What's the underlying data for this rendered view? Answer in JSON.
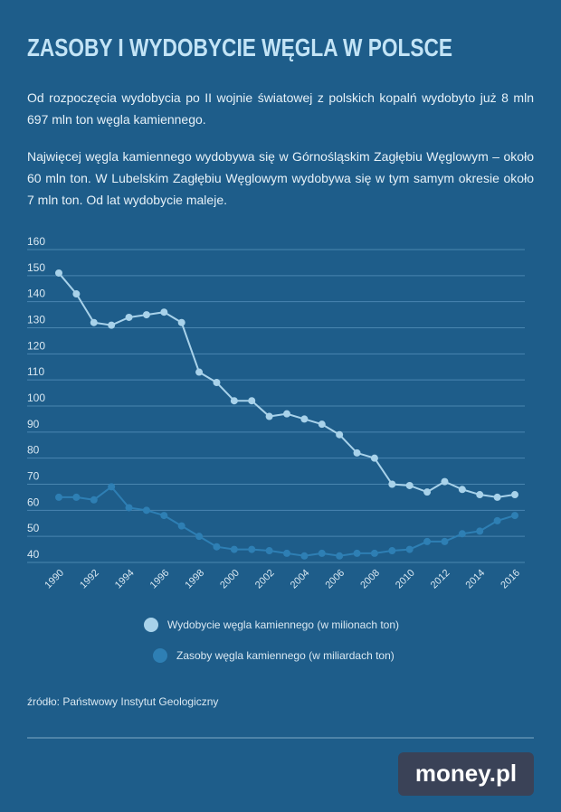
{
  "header": {
    "title": "ZASOBY I WYDOBYCIE WĘGLA W POLSCE"
  },
  "paragraphs": [
    "Od rozpoczęcia wydobycia po II wojnie światowej z polskich kopalń wydobyto już 8 mln 697 mln ton węgla kamiennego.",
    "Najwięcej węgla kamiennego wydobywa się w Górnośląskim Zagłębiu Węglowym – około 60 mln ton. W Lubelskim Zagłębiu Węglowym wydobywa się w tym samym okresie około 7 mln ton. Od lat wydobycie maleje."
  ],
  "chart_data": {
    "type": "line",
    "x": [
      1990,
      1991,
      1992,
      1993,
      1994,
      1995,
      1996,
      1997,
      1998,
      1999,
      2000,
      2001,
      2002,
      2003,
      2004,
      2005,
      2006,
      2007,
      2008,
      2009,
      2010,
      2011,
      2012,
      2013,
      2014,
      2015,
      2016
    ],
    "series": [
      {
        "name": "Wydobycie węgla kamiennego (w milionach ton)",
        "color": "#a8d2ea",
        "values": [
          151,
          143,
          132,
          131,
          134,
          135,
          136,
          132,
          113,
          109,
          102,
          102,
          96,
          97,
          95,
          93,
          89,
          82,
          80,
          70,
          69.5,
          67,
          71,
          68,
          66,
          65,
          66
        ]
      },
      {
        "name": "Zasoby węgla kamiennego (w miliardach ton)",
        "color": "#2e7fb4",
        "values": [
          65,
          65,
          64,
          69,
          61,
          60,
          58,
          54,
          50,
          46,
          45,
          45,
          44.5,
          43.5,
          42.5,
          43.5,
          42.5,
          43.5,
          43.5,
          44.5,
          45,
          48,
          48,
          51,
          52,
          56,
          58
        ]
      }
    ],
    "xlim": [
      1990,
      2016
    ],
    "xticks": [
      1990,
      1992,
      1994,
      1996,
      1998,
      2000,
      2002,
      2004,
      2006,
      2008,
      2010,
      2012,
      2014,
      2016
    ],
    "ylim": [
      40,
      160
    ],
    "yticks": [
      40,
      50,
      60,
      70,
      80,
      90,
      100,
      110,
      120,
      130,
      140,
      150,
      160
    ],
    "grid": true
  },
  "source": "źródło: Państwowy Instytut Geologiczny",
  "logo": "money.pl"
}
